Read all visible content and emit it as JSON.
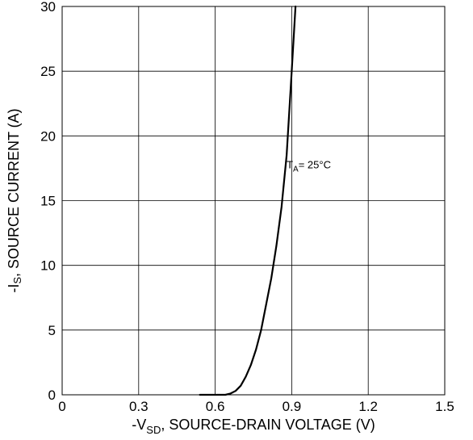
{
  "chart_data": {
    "type": "line",
    "title": "",
    "xlabel": {
      "prefix": "-V",
      "sub": "SD",
      "suffix": ", SOURCE-DRAIN VOLTAGE (V)"
    },
    "ylabel": {
      "prefix": "-I",
      "sub": "S",
      "suffix": ", SOURCE CURRENT (A)"
    },
    "xlim": [
      0,
      1.5
    ],
    "ylim": [
      0,
      30
    ],
    "x_ticks": [
      "0",
      "0.3",
      "0.6",
      "0.9",
      "1.2",
      "1.5"
    ],
    "y_ticks": [
      "0",
      "5",
      "10",
      "15",
      "20",
      "25",
      "30"
    ],
    "grid": true,
    "series": [
      {
        "color": "#000000",
        "points": [
          [
            0.54,
            0.0
          ],
          [
            0.64,
            0.0
          ],
          [
            0.66,
            0.1
          ],
          [
            0.68,
            0.3
          ],
          [
            0.7,
            0.7
          ],
          [
            0.72,
            1.4
          ],
          [
            0.74,
            2.3
          ],
          [
            0.76,
            3.5
          ],
          [
            0.78,
            5.0
          ],
          [
            0.8,
            7.0
          ],
          [
            0.82,
            9.0
          ],
          [
            0.84,
            11.5
          ],
          [
            0.86,
            14.5
          ],
          [
            0.88,
            18.5
          ],
          [
            0.9,
            25.0
          ],
          [
            0.915,
            30.0
          ]
        ]
      }
    ],
    "annotation": {
      "prefix": "T",
      "sub": "A",
      "suffix": "= 25°C",
      "x": 0.88,
      "y": 17.5
    }
  }
}
